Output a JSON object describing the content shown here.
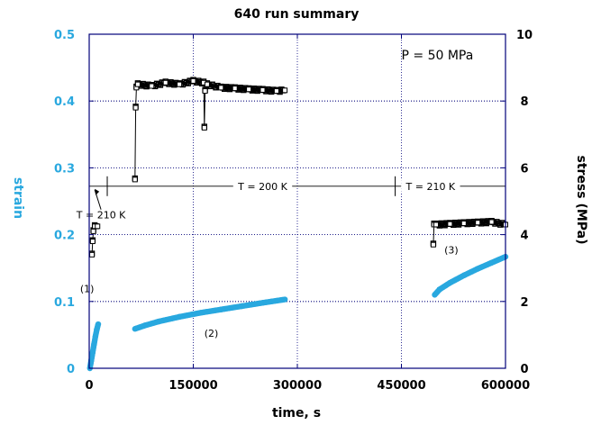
{
  "chart_data": {
    "type": "scatter",
    "title": "640 run summary",
    "xlabel": "time, s",
    "ylabel_left": "strain",
    "ylabel_right": "stress (MPa)",
    "xlim": [
      0,
      600000
    ],
    "ylim_left": [
      0,
      0.5
    ],
    "ylim_right": [
      0,
      10
    ],
    "x_ticks": [
      {
        "value": 0,
        "label": "0"
      },
      {
        "value": 150000,
        "label": "150000"
      },
      {
        "value": 300000,
        "label": "300000"
      },
      {
        "value": 450000,
        "label": "450000"
      },
      {
        "value": 600000,
        "label": "600000"
      }
    ],
    "y_left_ticks": [
      {
        "value": 0,
        "label": "0"
      },
      {
        "value": 0.1,
        "label": "0.1"
      },
      {
        "value": 0.2,
        "label": "0.2"
      },
      {
        "value": 0.3,
        "label": "0.3"
      },
      {
        "value": 0.4,
        "label": "0.4"
      },
      {
        "value": 0.5,
        "label": "0.5"
      }
    ],
    "y_right_ticks": [
      {
        "value": 0,
        "label": "0"
      },
      {
        "value": 2,
        "label": "2"
      },
      {
        "value": 4,
        "label": "4"
      },
      {
        "value": 6,
        "label": "6"
      },
      {
        "value": 8,
        "label": "8"
      },
      {
        "value": 10,
        "label": "10"
      }
    ],
    "grid": true,
    "colors": {
      "strain": "#29a8df",
      "stress": "#000000",
      "grid": "#00007a",
      "axis": "#00007a",
      "left_axis_text": "#29a8df"
    },
    "series": [
      {
        "name": "strain stage 1",
        "axis": "left",
        "points": [
          [
            1000,
            0.0
          ],
          [
            3000,
            0.012
          ],
          [
            5000,
            0.024
          ],
          [
            7000,
            0.036
          ],
          [
            9000,
            0.048
          ],
          [
            11000,
            0.058
          ],
          [
            13000,
            0.066
          ]
        ]
      },
      {
        "name": "strain stage 2",
        "axis": "left",
        "points": [
          [
            66000,
            0.059
          ],
          [
            80000,
            0.064
          ],
          [
            100000,
            0.07
          ],
          [
            130000,
            0.077
          ],
          [
            160000,
            0.083
          ],
          [
            190000,
            0.088
          ],
          [
            220000,
            0.093
          ],
          [
            250000,
            0.098
          ],
          [
            282000,
            0.103
          ]
        ]
      },
      {
        "name": "strain stage 3",
        "axis": "left",
        "points": [
          [
            498000,
            0.11
          ],
          [
            505000,
            0.118
          ],
          [
            520000,
            0.128
          ],
          [
            540000,
            0.139
          ],
          [
            560000,
            0.149
          ],
          [
            580000,
            0.158
          ],
          [
            600000,
            0.167
          ]
        ]
      },
      {
        "name": "stress stage 1",
        "axis": "right",
        "points": [
          [
            4000,
            3.4
          ],
          [
            5000,
            3.8
          ],
          [
            6000,
            4.1
          ],
          [
            8000,
            4.25
          ],
          [
            12000,
            4.25
          ]
        ]
      },
      {
        "name": "stress stage 2",
        "axis": "right",
        "points": [
          [
            66000,
            5.65
          ],
          [
            67000,
            7.8
          ],
          [
            68000,
            8.4
          ],
          [
            70000,
            8.5
          ],
          [
            90000,
            8.45
          ],
          [
            110000,
            8.55
          ],
          [
            130000,
            8.5
          ],
          [
            150000,
            8.6
          ],
          [
            165000,
            8.55
          ],
          [
            166000,
            7.2
          ],
          [
            167000,
            8.3
          ],
          [
            170000,
            8.5
          ],
          [
            190000,
            8.4
          ],
          [
            210000,
            8.38
          ],
          [
            230000,
            8.35
          ],
          [
            250000,
            8.33
          ],
          [
            270000,
            8.3
          ],
          [
            282000,
            8.32
          ]
        ]
      },
      {
        "name": "stress stage 3",
        "axis": "right",
        "points": [
          [
            496000,
            3.7
          ],
          [
            497000,
            4.3
          ],
          [
            500000,
            4.3
          ],
          [
            520000,
            4.32
          ],
          [
            540000,
            4.34
          ],
          [
            560000,
            4.36
          ],
          [
            580000,
            4.38
          ],
          [
            600000,
            4.3
          ]
        ]
      }
    ],
    "temperature_line": {
      "stress_level": 5.45,
      "segments": [
        {
          "label": "T = 210 K",
          "x_start": 0,
          "x_end": 26000
        },
        {
          "label": "T = 200 K",
          "x_start": 26000,
          "x_end": 441000
        },
        {
          "label": "T = 210 K",
          "x_start": 441000,
          "x_end": 600000
        }
      ],
      "dividers": [
        26000,
        441000
      ]
    },
    "annotations": [
      {
        "text": "P = 50 MPa",
        "x": 450000,
        "y_right": 9.35
      },
      {
        "text": "T = 210 K",
        "x": 17000,
        "y_right": 4.6
      },
      {
        "text": "T = 200 K",
        "x": 250000,
        "y_right": 5.45
      },
      {
        "text": "T = 210 K",
        "x": 492000,
        "y_right": 5.45
      },
      {
        "text": "(1)",
        "x": -3000,
        "y_right": 2.38
      },
      {
        "text": "(2)",
        "x": 176000,
        "y_right": 1.05
      },
      {
        "text": "(3)",
        "x": 522000,
        "y_right": 3.55
      }
    ]
  }
}
